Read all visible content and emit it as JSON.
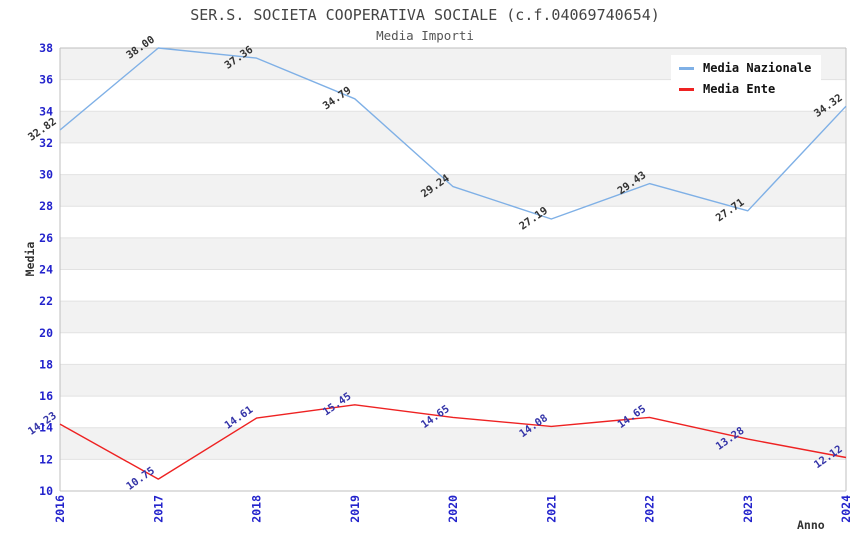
{
  "chart_data": {
    "type": "line",
    "title": "SER.S. SOCIETA COOPERATIVA SOCIALE (c.f.04069740654)",
    "subtitle": "Media Importi",
    "xlabel": "Anno",
    "ylabel": "Media",
    "x": [
      2016,
      2017,
      2018,
      2019,
      2020,
      2021,
      2022,
      2023,
      2024
    ],
    "ylim": [
      10,
      38
    ],
    "y_ticks": [
      10,
      12,
      14,
      16,
      18,
      20,
      22,
      24,
      26,
      28,
      30,
      32,
      34,
      36,
      38
    ],
    "series": [
      {
        "name": "Media Nazionale",
        "color": "#7fb0e6",
        "label_color": "#333333",
        "values": [
          32.82,
          38.0,
          37.36,
          34.79,
          29.24,
          27.19,
          29.43,
          27.71,
          34.32
        ]
      },
      {
        "name": "Media Ente",
        "color": "#ee2222",
        "label_color": "#3434a8",
        "values": [
          14.23,
          10.75,
          14.61,
          15.45,
          14.65,
          14.08,
          14.65,
          13.28,
          12.12
        ]
      }
    ],
    "legend_position": "top-right",
    "grid": "horizontal-bands",
    "colors": {
      "band": "#f2f2f2",
      "gridline": "#e2e2e2",
      "border": "#bfbfbf",
      "tick_labels": "#2323cc",
      "title": "#444444",
      "subtitle": "#555555",
      "axis_labels": "#333333",
      "background": "#ffffff"
    }
  }
}
